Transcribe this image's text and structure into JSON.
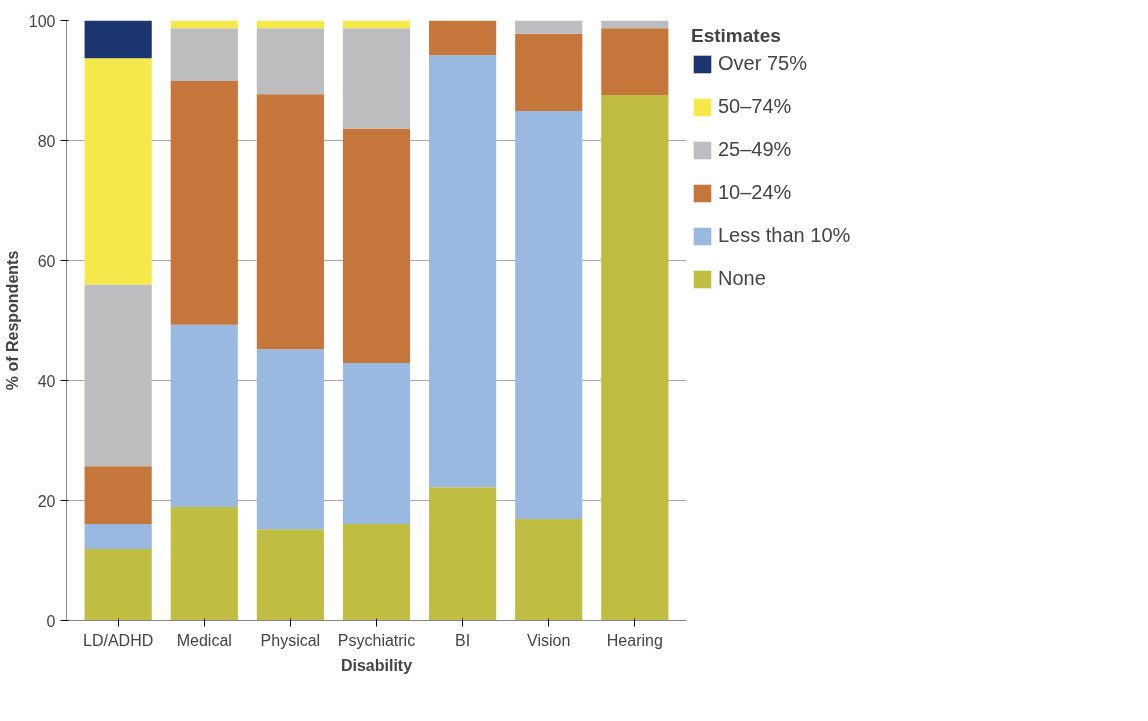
{
  "chart_data": {
    "type": "bar",
    "stacked": true,
    "xlabel": "Disability",
    "ylabel": "% of Respondents",
    "legend_title": "Estimates",
    "categories": [
      "LD/ADHD",
      "Medical",
      "Physical",
      "Psychiatric",
      "BI",
      "Vision",
      "Hearing"
    ],
    "series": [
      {
        "name": "None",
        "color": "#bfbd42",
        "values": [
          11.9,
          18.9,
          15.2,
          16.1,
          22.2,
          16.9,
          87.6
        ]
      },
      {
        "name": "Less than 10%",
        "color": "#99b9e1",
        "values": [
          4.2,
          30.4,
          30.0,
          26.8,
          72.0,
          68.0,
          0
        ]
      },
      {
        "name": "10–24%",
        "color": "#c5763a",
        "values": [
          9.6,
          40.6,
          42.5,
          39.1,
          5.8,
          12.9,
          11.1
        ]
      },
      {
        "name": "25–49%",
        "color": "#bdbdbf",
        "values": [
          30.3,
          8.8,
          11.0,
          16.7,
          0,
          2.2,
          1.3
        ]
      },
      {
        "name": "50–74%",
        "color": "#f5e84a",
        "values": [
          37.7,
          1.3,
          1.3,
          1.3,
          0,
          0,
          0
        ]
      },
      {
        "name": "Over 75%",
        "color": "#1a3570",
        "values": [
          6.3,
          0,
          0,
          0,
          0,
          0,
          0
        ]
      }
    ],
    "ylim": [
      0,
      100
    ],
    "yticks": [
      0,
      20,
      40,
      60,
      80,
      100
    ],
    "grid": "y",
    "legend": "right"
  }
}
